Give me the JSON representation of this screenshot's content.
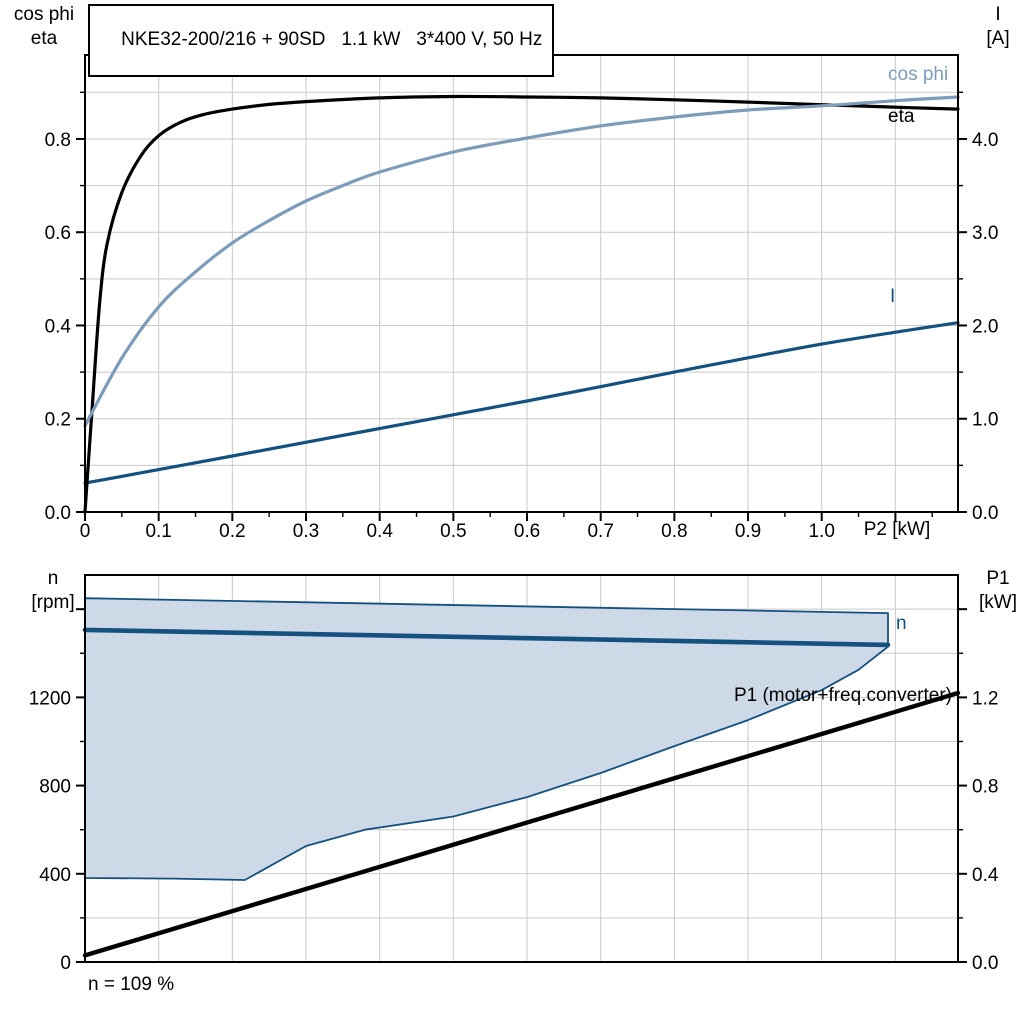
{
  "title_box": {
    "text": "NKE32-200/216 + 90SD   1.1 kW   3*400 V, 50 Hz"
  },
  "colors": {
    "black": "#000000",
    "steel": "#7d9cba",
    "navy": "#14517f",
    "bandfill": "#cdd9e6",
    "grid": "#c9c9c9",
    "frame": "#000000"
  },
  "chart_data": [
    {
      "type": "line",
      "id": "top",
      "title": "NKE32-200/216 + 90SD   1.1 kW   3*400 V, 50 Hz",
      "x_axis": {
        "label": "P2 [kW]",
        "range": [
          0,
          1.185
        ],
        "major_ticks": [
          0,
          0.1,
          0.2,
          0.3,
          0.4,
          0.5,
          0.6,
          0.7,
          0.8,
          0.9,
          1.0,
          1.1
        ],
        "tick_labels": [
          "0",
          "0.1",
          "0.2",
          "0.3",
          "0.4",
          "0.5",
          "0.6",
          "0.7",
          "0.8",
          "0.9",
          "1.0",
          ""
        ],
        "minor_tick_step": 0.05,
        "grid_step": 0.1
      },
      "y_left": {
        "label_lines": [
          "cos phi",
          "eta"
        ],
        "range": [
          0,
          0.98
        ],
        "major_ticks": [
          0,
          0.2,
          0.4,
          0.6,
          0.8
        ],
        "tick_labels": [
          "0.0",
          "0.2",
          "0.4",
          "0.6",
          "0.8"
        ],
        "minor_tick_step": 0.1,
        "grid_step": 0.1
      },
      "y_right": {
        "label_lines": [
          "I",
          "[A]"
        ],
        "range": [
          0,
          4.9
        ],
        "major_ticks": [
          0,
          1,
          2,
          3,
          4
        ],
        "tick_labels": [
          "0.0",
          "1.0",
          "2.0",
          "3.0",
          "4.0"
        ],
        "minor_tick_step": 0.5
      },
      "grid": true,
      "legend_position": "right-inside",
      "series": [
        {
          "name": "I",
          "axis": "right",
          "color_key": "navy",
          "width": 3.2,
          "smooth": true,
          "points": [
            [
              0,
              0.31
            ],
            [
              0.2,
              0.6
            ],
            [
              0.4,
              0.895
            ],
            [
              0.6,
              1.19
            ],
            [
              0.8,
              1.5
            ],
            [
              1.0,
              1.8
            ],
            [
              1.185,
              2.03
            ]
          ]
        },
        {
          "name": "eta",
          "axis": "left",
          "color_key": "black",
          "width": 3.2,
          "smooth": true,
          "points": [
            [
              0,
              0
            ],
            [
              0.01,
              0.23
            ],
            [
              0.02,
              0.45
            ],
            [
              0.03,
              0.575
            ],
            [
              0.05,
              0.685
            ],
            [
              0.075,
              0.762
            ],
            [
              0.1,
              0.807
            ],
            [
              0.13,
              0.836
            ],
            [
              0.16,
              0.852
            ],
            [
              0.2,
              0.864
            ],
            [
              0.25,
              0.874
            ],
            [
              0.3,
              0.88
            ],
            [
              0.4,
              0.888
            ],
            [
              0.5,
              0.891
            ],
            [
              0.6,
              0.89
            ],
            [
              0.7,
              0.888
            ],
            [
              0.8,
              0.884
            ],
            [
              0.9,
              0.879
            ],
            [
              1.0,
              0.8735
            ],
            [
              1.1,
              0.868
            ],
            [
              1.185,
              0.864
            ]
          ]
        },
        {
          "name": "cos phi",
          "axis": "left",
          "color_key": "steel",
          "width": 3.2,
          "smooth": true,
          "points": [
            [
              0,
              0.185
            ],
            [
              0.05,
              0.33
            ],
            [
              0.1,
              0.44
            ],
            [
              0.15,
              0.515
            ],
            [
              0.2,
              0.577
            ],
            [
              0.25,
              0.625
            ],
            [
              0.3,
              0.667
            ],
            [
              0.35,
              0.7
            ],
            [
              0.4,
              0.729
            ],
            [
              0.5,
              0.772
            ],
            [
              0.6,
              0.802
            ],
            [
              0.7,
              0.828
            ],
            [
              0.8,
              0.847
            ],
            [
              0.9,
              0.862
            ],
            [
              1.0,
              0.871
            ],
            [
              1.1,
              0.882
            ],
            [
              1.185,
              0.89
            ]
          ]
        }
      ],
      "curve_labels": [
        {
          "text": "cos phi",
          "color_key": "steel"
        },
        {
          "text": "eta",
          "color_key": "black"
        },
        {
          "text": "I",
          "color_key": "navy"
        }
      ]
    },
    {
      "type": "line",
      "id": "bottom",
      "x_axis": {
        "label": "",
        "range": [
          0,
          1.185
        ],
        "grid_step": 0.1
      },
      "y_left": {
        "label_lines": [
          "n",
          "[rpm]"
        ],
        "range": [
          0,
          1755
        ],
        "major_ticks": [
          0,
          400,
          800,
          1200,
          1600
        ],
        "tick_labels": [
          "0",
          "400",
          "800",
          "1200",
          ""
        ],
        "minor_tick_step": 200,
        "grid_step": 200
      },
      "y_right": {
        "label_lines": [
          "P1",
          "[kW]"
        ],
        "range": [
          0,
          1.755
        ],
        "major_ticks": [
          0,
          0.4,
          0.8,
          1.2,
          1.6
        ],
        "tick_labels": [
          "0.0",
          "0.4",
          "0.8",
          "1.2",
          ""
        ],
        "minor_tick_step": 0.2
      },
      "grid": true,
      "band": {
        "axis": "left",
        "fill_key": "bandfill",
        "edge_key": "navy",
        "upper": [
          [
            0,
            1650
          ],
          [
            1.09,
            1582
          ]
        ],
        "lower": [
          [
            0,
            381
          ],
          [
            0.12,
            378
          ],
          [
            0.217,
            372
          ],
          [
            0.3,
            526
          ],
          [
            0.38,
            600
          ],
          [
            0.5,
            660
          ],
          [
            0.6,
            748
          ],
          [
            0.7,
            857
          ],
          [
            0.8,
            979
          ],
          [
            0.9,
            1097
          ],
          [
            1.0,
            1233
          ],
          [
            1.05,
            1325
          ],
          [
            1.09,
            1430
          ]
        ]
      },
      "series": [
        {
          "name": "n",
          "axis": "left",
          "color_key": "navy",
          "width": 4.6,
          "smooth": false,
          "points": [
            [
              0,
              1506
            ],
            [
              1.09,
              1438
            ]
          ]
        },
        {
          "name": "P1 (motor+freq.converter)",
          "axis": "right",
          "color_key": "black",
          "width": 4.4,
          "smooth": false,
          "points": [
            [
              0,
              0.03
            ],
            [
              1.185,
              1.22
            ]
          ]
        }
      ],
      "curve_labels": [
        {
          "text": "n",
          "color_key": "navy"
        },
        {
          "text": "P1 (motor+freq.converter)",
          "color_key": "black"
        }
      ],
      "annotation": "n = 109 %"
    }
  ]
}
